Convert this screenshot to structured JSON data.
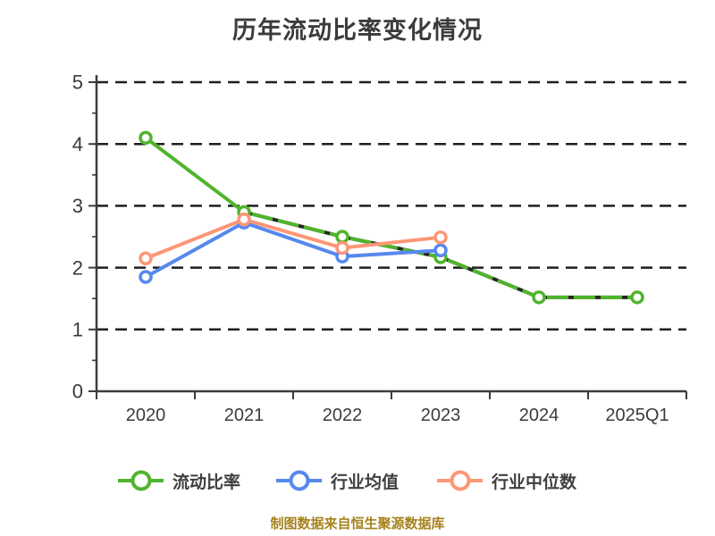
{
  "title": {
    "text": "历年流动比率变化情况"
  },
  "chart_data": {
    "type": "line",
    "title": "历年流动比率变化情况",
    "categories": [
      "2020",
      "2021",
      "2022",
      "2023",
      "2024",
      "2025Q1"
    ],
    "series": [
      {
        "name": "流动比率",
        "color": "#50b42c",
        "marker": "circle",
        "values": [
          4.1,
          2.9,
          2.5,
          2.17,
          1.52,
          1.52
        ],
        "dash_overlay_segments": [
          1,
          2,
          3,
          4
        ]
      },
      {
        "name": "行业均值",
        "color": "#5688ee",
        "marker": "circle",
        "values": [
          1.85,
          2.73,
          2.18,
          2.28,
          null,
          null
        ],
        "dash_overlay_segments": []
      },
      {
        "name": "行业中位数",
        "color": "#fd9676",
        "marker": "circle",
        "values": [
          2.15,
          2.78,
          2.32,
          2.49,
          null,
          null
        ],
        "dash_overlay_segments": []
      }
    ],
    "xlabel": "",
    "ylabel": "",
    "ylim": [
      0,
      5
    ],
    "ytick_step": 1,
    "y_minor_tick_step": 0.5,
    "grid": "horizontal-dashed",
    "legend_position": "bottom"
  },
  "legend": {
    "items": [
      {
        "label": "流动比率",
        "color": "#50b42c"
      },
      {
        "label": "行业均值",
        "color": "#5688ee"
      },
      {
        "label": "行业中位数",
        "color": "#fd9676"
      }
    ]
  },
  "footer": {
    "text": "制图数据来自恒生聚源数据库",
    "color": "#a6821e"
  },
  "colors": {
    "text": "#3b3b3b",
    "axis": "#3b3b3b",
    "grid": "#1f1f1f",
    "dash_overlay": "#262626",
    "background": "#ffffff"
  }
}
